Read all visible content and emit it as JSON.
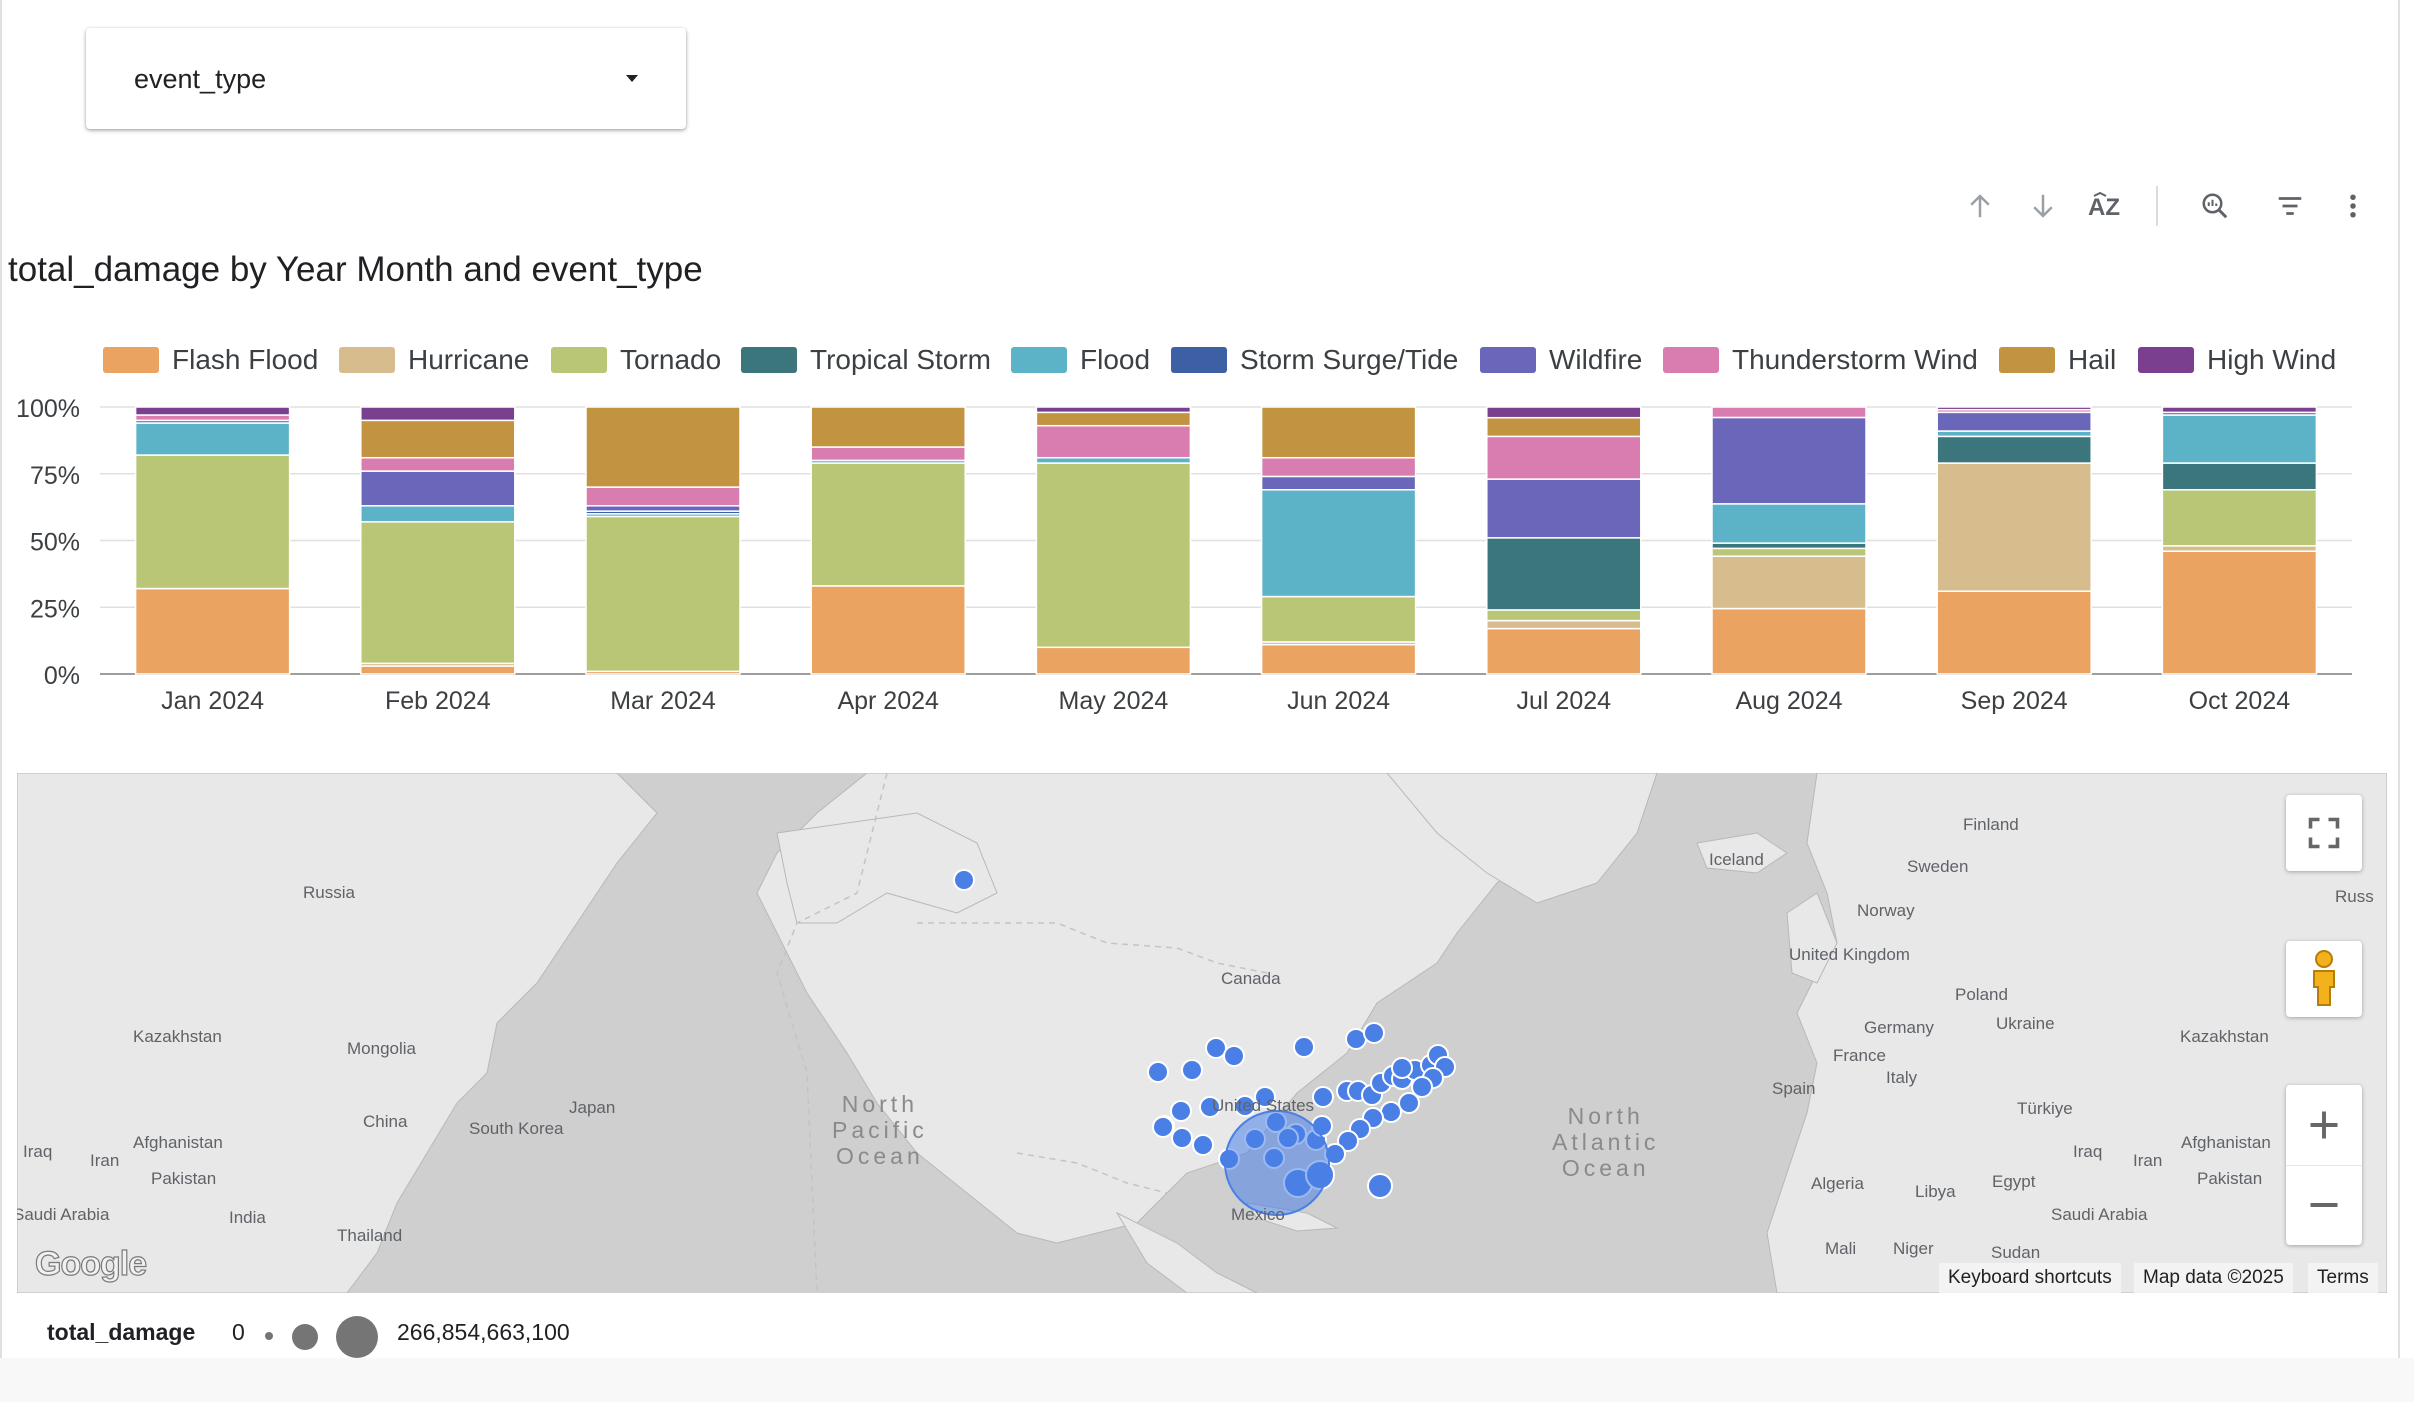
{
  "filter": {
    "label": "event_type"
  },
  "toolbar": {
    "icons": [
      "sort-ascending-icon",
      "sort-descending-icon",
      "sort-az-icon",
      "explore-icon",
      "filter-icon",
      "more-options-icon"
    ]
  },
  "chart_data": {
    "type": "bar",
    "stacked": true,
    "normalized": true,
    "title": "total_damage by Year Month and event_type",
    "xlabel": "",
    "ylabel": "",
    "ylim": [
      0,
      100
    ],
    "yticks": [
      "0%",
      "25%",
      "50%",
      "75%",
      "100%"
    ],
    "grid": true,
    "legend_position": "top",
    "categories": [
      "Jan 2024",
      "Feb 2024",
      "Mar 2024",
      "Apr 2024",
      "May 2024",
      "Jun 2024",
      "Jul 2024",
      "Aug 2024",
      "Sep 2024",
      "Oct 2024"
    ],
    "series": [
      {
        "name": "Flash Flood",
        "color": "#eba362",
        "values": [
          32,
          3,
          1,
          33,
          10,
          11,
          17,
          25,
          31,
          46
        ]
      },
      {
        "name": "Hurricane",
        "color": "#d7bd8e",
        "values": [
          0,
          1,
          0,
          0,
          0,
          1,
          3,
          20,
          48,
          2
        ]
      },
      {
        "name": "Tornado",
        "color": "#b8c675",
        "values": [
          50,
          53,
          58,
          46,
          69,
          17,
          4,
          3,
          0,
          21
        ]
      },
      {
        "name": "Tropical Storm",
        "color": "#3b767c",
        "values": [
          0,
          0,
          0,
          0,
          0,
          0,
          27,
          2,
          10,
          10
        ]
      },
      {
        "name": "Flood",
        "color": "#5cb3c8",
        "values": [
          12,
          6,
          1,
          1,
          2,
          40,
          0,
          15,
          2,
          18
        ]
      },
      {
        "name": "Storm Surge/Tide",
        "color": "#3d5fa3",
        "values": [
          0,
          0,
          1,
          0,
          0,
          0,
          0,
          0,
          0,
          0
        ]
      },
      {
        "name": "Wildfire",
        "color": "#6a67ba",
        "values": [
          1,
          13,
          2,
          0,
          0,
          5,
          22,
          33,
          7,
          1
        ]
      },
      {
        "name": "Thunderstorm Wind",
        "color": "#d97db1",
        "values": [
          2,
          5,
          7,
          5,
          12,
          7,
          16,
          4,
          1,
          0
        ]
      },
      {
        "name": "Hail",
        "color": "#c29442",
        "values": [
          0,
          14,
          30,
          15,
          5,
          19,
          7,
          0,
          0,
          0
        ]
      },
      {
        "name": "High Wind",
        "color": "#7a3f8e",
        "values": [
          3,
          5,
          0,
          0,
          2,
          0,
          4,
          0,
          1,
          2
        ]
      }
    ]
  },
  "map": {
    "point_color": "#4a7fe6",
    "land_color": "#e8e8e8",
    "water_color": "#cfcfcf",
    "country_labels": [
      "Russia",
      "Kazakhstan",
      "Mongolia",
      "China",
      "Japan",
      "South Korea",
      "Afghanistan",
      "Iraq",
      "Iran",
      "Pakistan",
      "India",
      "Thailand",
      "Saudi Arabia",
      "Canada",
      "United States",
      "Mexico",
      "Iceland",
      "Finland",
      "Sweden",
      "Norway",
      "United Kingdom",
      "Poland",
      "Germany",
      "Ukraine",
      "France",
      "Spain",
      "Italy",
      "Türkiye",
      "Kazakhstan",
      "Afghanistan",
      "Iraq",
      "Iran",
      "Pakistan",
      "Algeria",
      "Libya",
      "Egypt",
      "Saudi Arabia",
      "Mali",
      "Niger",
      "Sudan",
      "Russ"
    ],
    "ocean_labels": [
      "North\nPacific\nOcean",
      "North\nAtlantic\nOcean"
    ],
    "google_logo": "Google",
    "attribution": {
      "shortcuts": "Keyboard shortcuts",
      "data": "Map data ©2025",
      "terms": "Terms"
    },
    "controls": [
      "fullscreen-icon",
      "pegman-icon",
      "zoom-in-icon",
      "zoom-out-icon"
    ]
  },
  "size_legend": {
    "title": "total_damage",
    "min": "0",
    "max": "266,854,663,100"
  }
}
